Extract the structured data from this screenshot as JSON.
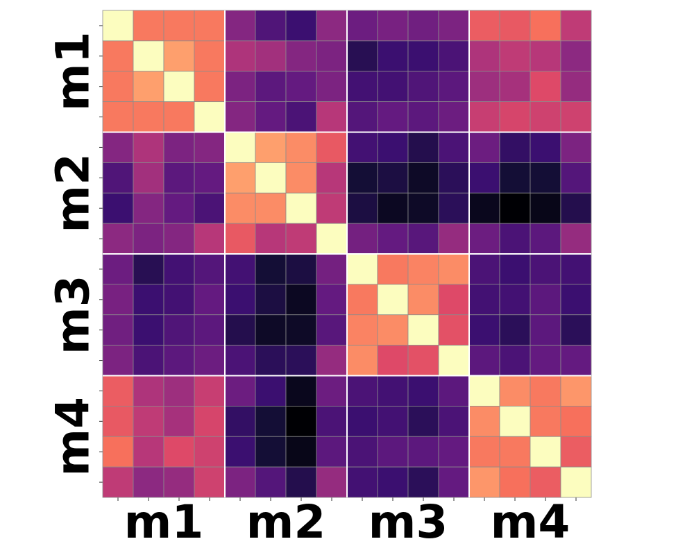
{
  "chart_data": {
    "type": "heatmap",
    "title": "",
    "xlabel": "",
    "ylabel": "",
    "colormap": "magma",
    "value_range": [
      0,
      1
    ],
    "grid": true,
    "legend": "none",
    "groups": [
      {
        "label": "m1",
        "size": 4
      },
      {
        "label": "m2",
        "size": 4
      },
      {
        "label": "m3",
        "size": 4
      },
      {
        "label": "m4",
        "size": 4
      }
    ],
    "values": [
      [
        1.0,
        0.72,
        0.72,
        0.72,
        0.38,
        0.25,
        0.2,
        0.4,
        0.32,
        0.35,
        0.33,
        0.36,
        0.65,
        0.64,
        0.7,
        0.52
      ],
      [
        0.72,
        1.0,
        0.8,
        0.72,
        0.48,
        0.45,
        0.38,
        0.36,
        0.15,
        0.2,
        0.2,
        0.24,
        0.48,
        0.52,
        0.5,
        0.4
      ],
      [
        0.72,
        0.8,
        1.0,
        0.72,
        0.36,
        0.28,
        0.3,
        0.36,
        0.22,
        0.22,
        0.25,
        0.28,
        0.44,
        0.46,
        0.6,
        0.42
      ],
      [
        0.72,
        0.72,
        0.72,
        1.0,
        0.38,
        0.3,
        0.24,
        0.5,
        0.26,
        0.3,
        0.28,
        0.32,
        0.54,
        0.58,
        0.56,
        0.56
      ],
      [
        0.38,
        0.48,
        0.36,
        0.38,
        1.0,
        0.8,
        0.76,
        0.64,
        0.22,
        0.2,
        0.14,
        0.24,
        0.32,
        0.18,
        0.2,
        0.36
      ],
      [
        0.25,
        0.45,
        0.28,
        0.3,
        0.8,
        1.0,
        0.76,
        0.5,
        0.1,
        0.12,
        0.07,
        0.16,
        0.2,
        0.1,
        0.1,
        0.26
      ],
      [
        0.2,
        0.38,
        0.3,
        0.24,
        0.76,
        0.76,
        1.0,
        0.52,
        0.12,
        0.06,
        0.07,
        0.16,
        0.05,
        0.0,
        0.04,
        0.14
      ],
      [
        0.4,
        0.36,
        0.38,
        0.5,
        0.64,
        0.5,
        0.52,
        1.0,
        0.34,
        0.3,
        0.27,
        0.42,
        0.32,
        0.24,
        0.28,
        0.42
      ],
      [
        0.32,
        0.15,
        0.22,
        0.26,
        0.22,
        0.1,
        0.12,
        0.34,
        1.0,
        0.72,
        0.74,
        0.76,
        0.24,
        0.2,
        0.24,
        0.22
      ],
      [
        0.35,
        0.2,
        0.22,
        0.3,
        0.2,
        0.12,
        0.06,
        0.3,
        0.72,
        1.0,
        0.76,
        0.6,
        0.22,
        0.22,
        0.28,
        0.2
      ],
      [
        0.33,
        0.2,
        0.25,
        0.28,
        0.14,
        0.07,
        0.07,
        0.27,
        0.74,
        0.76,
        1.0,
        0.62,
        0.2,
        0.16,
        0.28,
        0.16
      ],
      [
        0.36,
        0.24,
        0.28,
        0.32,
        0.24,
        0.16,
        0.16,
        0.42,
        0.76,
        0.6,
        0.62,
        1.0,
        0.28,
        0.24,
        0.3,
        0.3
      ],
      [
        0.65,
        0.48,
        0.44,
        0.54,
        0.32,
        0.2,
        0.05,
        0.32,
        0.24,
        0.22,
        0.2,
        0.28,
        1.0,
        0.76,
        0.72,
        0.78
      ],
      [
        0.64,
        0.52,
        0.46,
        0.58,
        0.18,
        0.1,
        0.0,
        0.24,
        0.2,
        0.22,
        0.16,
        0.24,
        0.76,
        1.0,
        0.72,
        0.7
      ],
      [
        0.7,
        0.5,
        0.6,
        0.56,
        0.2,
        0.1,
        0.04,
        0.28,
        0.24,
        0.28,
        0.28,
        0.3,
        0.72,
        0.72,
        1.0,
        0.65
      ],
      [
        0.52,
        0.4,
        0.42,
        0.56,
        0.36,
        0.26,
        0.14,
        0.42,
        0.22,
        0.2,
        0.16,
        0.3,
        0.78,
        0.7,
        0.65,
        1.0
      ]
    ]
  }
}
